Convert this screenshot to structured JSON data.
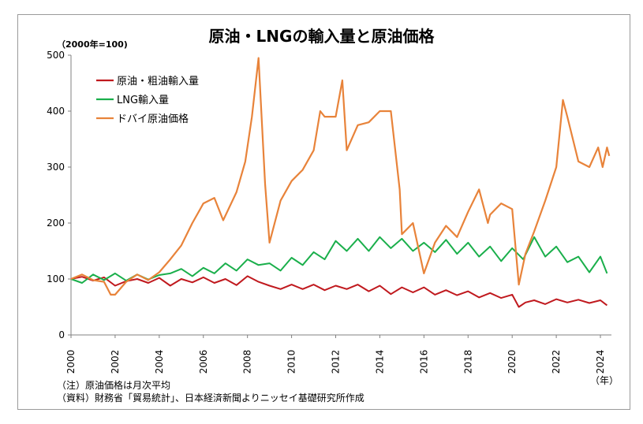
{
  "chart_data": {
    "type": "line",
    "title": "原油・LNGの輸入量と原油価格",
    "unit_label": "（2000年=100)",
    "x_unit_label": "（年）",
    "ylim": [
      0,
      500
    ],
    "xlim": [
      2000,
      2024.5
    ],
    "y_ticks": [
      "0",
      "100",
      "200",
      "300",
      "400",
      "500"
    ],
    "x_ticks": [
      "2000",
      "2002",
      "2004",
      "2006",
      "2008",
      "2010",
      "2012",
      "2014",
      "2016",
      "2018",
      "2020",
      "2022",
      "2024"
    ],
    "grid": false,
    "legend_position": "top-left",
    "notes": [
      "（注）原油価格は月次平均",
      "（資料）財務省「貿易統計」、日本経済新聞よりニッセイ基礎研究所作成"
    ],
    "series": [
      {
        "name": "原油・粗油輸入量",
        "color": "#c0191e",
        "points": [
          [
            2000.0,
            100
          ],
          [
            2000.5,
            104
          ],
          [
            2001.0,
            97
          ],
          [
            2001.5,
            103
          ],
          [
            2002.0,
            88
          ],
          [
            2002.5,
            96
          ],
          [
            2003.0,
            100
          ],
          [
            2003.5,
            93
          ],
          [
            2004.0,
            102
          ],
          [
            2004.5,
            88
          ],
          [
            2005.0,
            100
          ],
          [
            2005.5,
            94
          ],
          [
            2006.0,
            103
          ],
          [
            2006.5,
            93
          ],
          [
            2007.0,
            100
          ],
          [
            2007.5,
            89
          ],
          [
            2008.0,
            105
          ],
          [
            2008.5,
            95
          ],
          [
            2009.0,
            88
          ],
          [
            2009.5,
            82
          ],
          [
            2010.0,
            90
          ],
          [
            2010.5,
            82
          ],
          [
            2011.0,
            90
          ],
          [
            2011.5,
            80
          ],
          [
            2012.0,
            88
          ],
          [
            2012.5,
            82
          ],
          [
            2013.0,
            90
          ],
          [
            2013.5,
            78
          ],
          [
            2014.0,
            88
          ],
          [
            2014.5,
            73
          ],
          [
            2015.0,
            85
          ],
          [
            2015.5,
            76
          ],
          [
            2016.0,
            85
          ],
          [
            2016.5,
            72
          ],
          [
            2017.0,
            80
          ],
          [
            2017.5,
            71
          ],
          [
            2018.0,
            78
          ],
          [
            2018.5,
            67
          ],
          [
            2019.0,
            75
          ],
          [
            2019.5,
            66
          ],
          [
            2020.0,
            72
          ],
          [
            2020.3,
            50
          ],
          [
            2020.6,
            58
          ],
          [
            2021.0,
            62
          ],
          [
            2021.5,
            55
          ],
          [
            2022.0,
            64
          ],
          [
            2022.5,
            58
          ],
          [
            2023.0,
            63
          ],
          [
            2023.5,
            57
          ],
          [
            2024.0,
            62
          ],
          [
            2024.3,
            53
          ]
        ]
      },
      {
        "name": "LNG輸入量",
        "color": "#1aaf4b",
        "points": [
          [
            2000.0,
            100
          ],
          [
            2000.5,
            93
          ],
          [
            2001.0,
            108
          ],
          [
            2001.5,
            98
          ],
          [
            2002.0,
            110
          ],
          [
            2002.5,
            97
          ],
          [
            2003.0,
            108
          ],
          [
            2003.5,
            99
          ],
          [
            2004.0,
            107
          ],
          [
            2004.5,
            110
          ],
          [
            2005.0,
            118
          ],
          [
            2005.5,
            105
          ],
          [
            2006.0,
            120
          ],
          [
            2006.5,
            110
          ],
          [
            2007.0,
            128
          ],
          [
            2007.5,
            115
          ],
          [
            2008.0,
            135
          ],
          [
            2008.5,
            125
          ],
          [
            2009.0,
            128
          ],
          [
            2009.5,
            115
          ],
          [
            2010.0,
            138
          ],
          [
            2010.5,
            125
          ],
          [
            2011.0,
            148
          ],
          [
            2011.5,
            135
          ],
          [
            2012.0,
            168
          ],
          [
            2012.5,
            150
          ],
          [
            2013.0,
            172
          ],
          [
            2013.5,
            150
          ],
          [
            2014.0,
            175
          ],
          [
            2014.5,
            155
          ],
          [
            2015.0,
            172
          ],
          [
            2015.5,
            150
          ],
          [
            2016.0,
            165
          ],
          [
            2016.5,
            148
          ],
          [
            2017.0,
            170
          ],
          [
            2017.5,
            145
          ],
          [
            2018.0,
            165
          ],
          [
            2018.5,
            140
          ],
          [
            2019.0,
            158
          ],
          [
            2019.5,
            132
          ],
          [
            2020.0,
            155
          ],
          [
            2020.5,
            135
          ],
          [
            2021.0,
            175
          ],
          [
            2021.5,
            140
          ],
          [
            2022.0,
            158
          ],
          [
            2022.5,
            130
          ],
          [
            2023.0,
            140
          ],
          [
            2023.5,
            112
          ],
          [
            2024.0,
            140
          ],
          [
            2024.3,
            110
          ]
        ]
      },
      {
        "name": "ドバイ原油価格",
        "color": "#e8833a",
        "points": [
          [
            2000.0,
            100
          ],
          [
            2000.5,
            108
          ],
          [
            2001.0,
            98
          ],
          [
            2001.5,
            95
          ],
          [
            2001.8,
            72
          ],
          [
            2002.0,
            72
          ],
          [
            2002.5,
            95
          ],
          [
            2003.0,
            108
          ],
          [
            2003.5,
            98
          ],
          [
            2004.0,
            112
          ],
          [
            2004.5,
            135
          ],
          [
            2005.0,
            160
          ],
          [
            2005.5,
            200
          ],
          [
            2006.0,
            235
          ],
          [
            2006.5,
            245
          ],
          [
            2006.9,
            205
          ],
          [
            2007.5,
            255
          ],
          [
            2007.9,
            310
          ],
          [
            2008.2,
            390
          ],
          [
            2008.5,
            495
          ],
          [
            2008.8,
            270
          ],
          [
            2009.0,
            165
          ],
          [
            2009.5,
            240
          ],
          [
            2010.0,
            275
          ],
          [
            2010.5,
            295
          ],
          [
            2011.0,
            330
          ],
          [
            2011.3,
            400
          ],
          [
            2011.5,
            390
          ],
          [
            2012.0,
            390
          ],
          [
            2012.3,
            455
          ],
          [
            2012.5,
            330
          ],
          [
            2013.0,
            375
          ],
          [
            2013.5,
            380
          ],
          [
            2014.0,
            400
          ],
          [
            2014.5,
            400
          ],
          [
            2014.9,
            260
          ],
          [
            2015.0,
            180
          ],
          [
            2015.5,
            200
          ],
          [
            2016.0,
            110
          ],
          [
            2016.5,
            165
          ],
          [
            2017.0,
            195
          ],
          [
            2017.5,
            175
          ],
          [
            2018.0,
            220
          ],
          [
            2018.5,
            260
          ],
          [
            2018.9,
            200
          ],
          [
            2019.0,
            215
          ],
          [
            2019.5,
            235
          ],
          [
            2020.0,
            225
          ],
          [
            2020.3,
            90
          ],
          [
            2020.6,
            145
          ],
          [
            2021.0,
            185
          ],
          [
            2021.5,
            240
          ],
          [
            2022.0,
            300
          ],
          [
            2022.3,
            420
          ],
          [
            2022.5,
            390
          ],
          [
            2023.0,
            310
          ],
          [
            2023.5,
            300
          ],
          [
            2023.9,
            335
          ],
          [
            2024.1,
            300
          ],
          [
            2024.3,
            335
          ],
          [
            2024.4,
            320
          ]
        ]
      }
    ]
  }
}
